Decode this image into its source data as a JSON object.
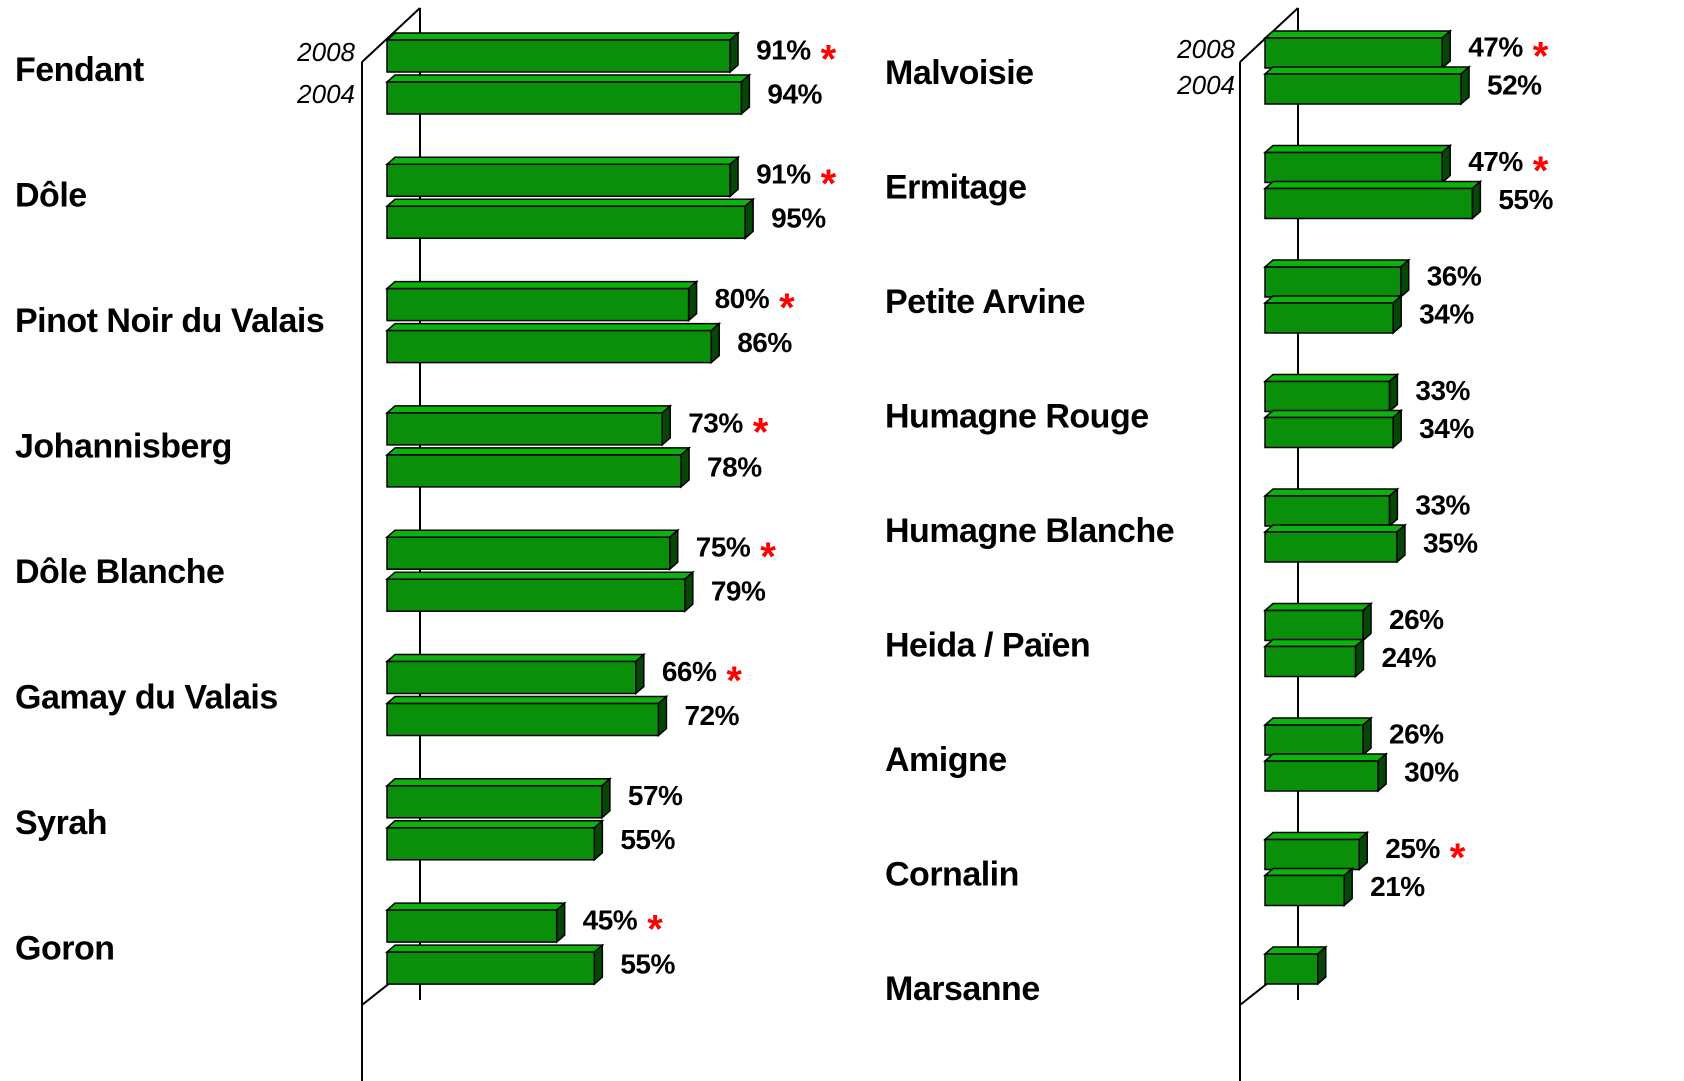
{
  "chart_data": [
    {
      "type": "bar3d",
      "xlim": [
        0,
        100
      ],
      "categories": [
        "Fendant",
        "Dôle",
        "Pinot Noir du Valais",
        "Johannisberg",
        "Dôle Blanche",
        "Gamay du Valais",
        "Syrah",
        "Goron"
      ],
      "flag_label": "*",
      "series": [
        {
          "name": "2008",
          "color": "#0a8f0a",
          "values": [
            91,
            91,
            80,
            73,
            75,
            66,
            57,
            45
          ],
          "value_labels": [
            "91%",
            "91%",
            "80%",
            "73%",
            "75%",
            "66%",
            "57%",
            "45%"
          ],
          "flags": [
            true,
            true,
            true,
            true,
            true,
            true,
            false,
            true
          ]
        },
        {
          "name": "2004",
          "color": "#0a8f0a",
          "values": [
            94,
            95,
            86,
            78,
            79,
            72,
            55,
            55
          ],
          "value_labels": [
            "94%",
            "95%",
            "86%",
            "78%",
            "79%",
            "72%",
            "55%",
            "55%"
          ]
        }
      ]
    },
    {
      "type": "bar3d",
      "xlim": [
        0,
        100
      ],
      "categories": [
        "Malvoisie",
        "Ermitage",
        "Petite Arvine",
        "Humagne Rouge",
        "Humagne Blanche",
        "Heida / Païen",
        "Amigne",
        "Cornalin",
        "Marsanne"
      ],
      "flag_label": "*",
      "series": [
        {
          "name": "2008",
          "color": "#0a8f0a",
          "values": [
            47,
            47,
            36,
            33,
            33,
            26,
            26,
            25,
            14
          ],
          "value_labels": [
            "47%",
            "47%",
            "36%",
            "33%",
            "33%",
            "26%",
            "26%",
            "25%",
            null
          ],
          "flags": [
            true,
            true,
            false,
            false,
            false,
            false,
            false,
            true,
            false
          ]
        },
        {
          "name": "2004",
          "color": "#0a8f0a",
          "values": [
            52,
            55,
            34,
            34,
            35,
            24,
            30,
            21,
            null
          ],
          "value_labels": [
            "52%",
            "55%",
            "34%",
            "34%",
            "35%",
            "24%",
            "30%",
            "21%",
            null
          ]
        }
      ]
    }
  ]
}
